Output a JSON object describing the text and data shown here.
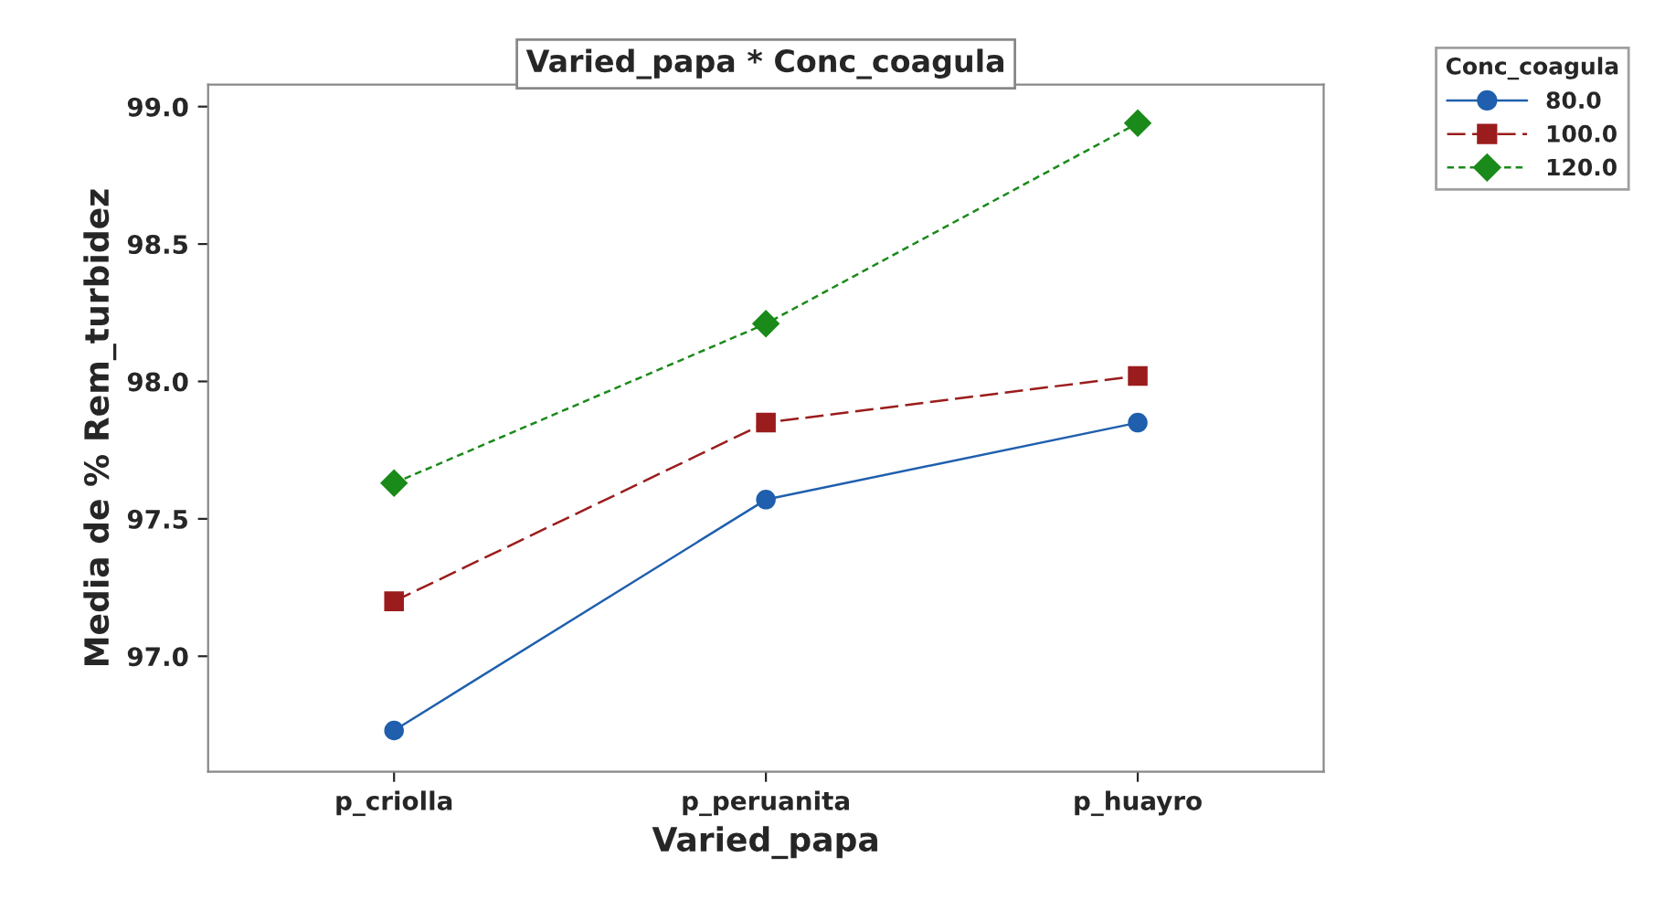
{
  "chart_data": {
    "type": "line",
    "title": "Varied_papa * Conc_coagula",
    "xlabel": "Varied_papa",
    "ylabel": "Media de % Rem_turbidez",
    "legend_title": "Conc_coagula",
    "categories": [
      "p_criolla",
      "p_peruanita",
      "p_huayro"
    ],
    "series": [
      {
        "name": "80.0",
        "color": "#1f5fad",
        "values": [
          96.73,
          97.57,
          97.85
        ],
        "marker": "circle",
        "line_style": "solid"
      },
      {
        "name": "100.0",
        "color": "#9b1c1c",
        "values": [
          97.2,
          97.85,
          98.02
        ],
        "marker": "square",
        "line_style": "dashed"
      },
      {
        "name": "120.0",
        "color": "#1a8a1a",
        "values": [
          97.63,
          98.21,
          98.94
        ],
        "marker": "diamond",
        "line_style": "dotted"
      }
    ],
    "ylim": [
      96.58,
      99.08
    ],
    "yticks": [
      {
        "value": 97.0,
        "label": "97.0"
      },
      {
        "value": 97.5,
        "label": "97.5"
      },
      {
        "value": 98.0,
        "label": "98.0"
      },
      {
        "value": 98.5,
        "label": "98.5"
      },
      {
        "value": 99.0,
        "label": "99.0"
      }
    ],
    "grid": false,
    "legend": "top right"
  }
}
